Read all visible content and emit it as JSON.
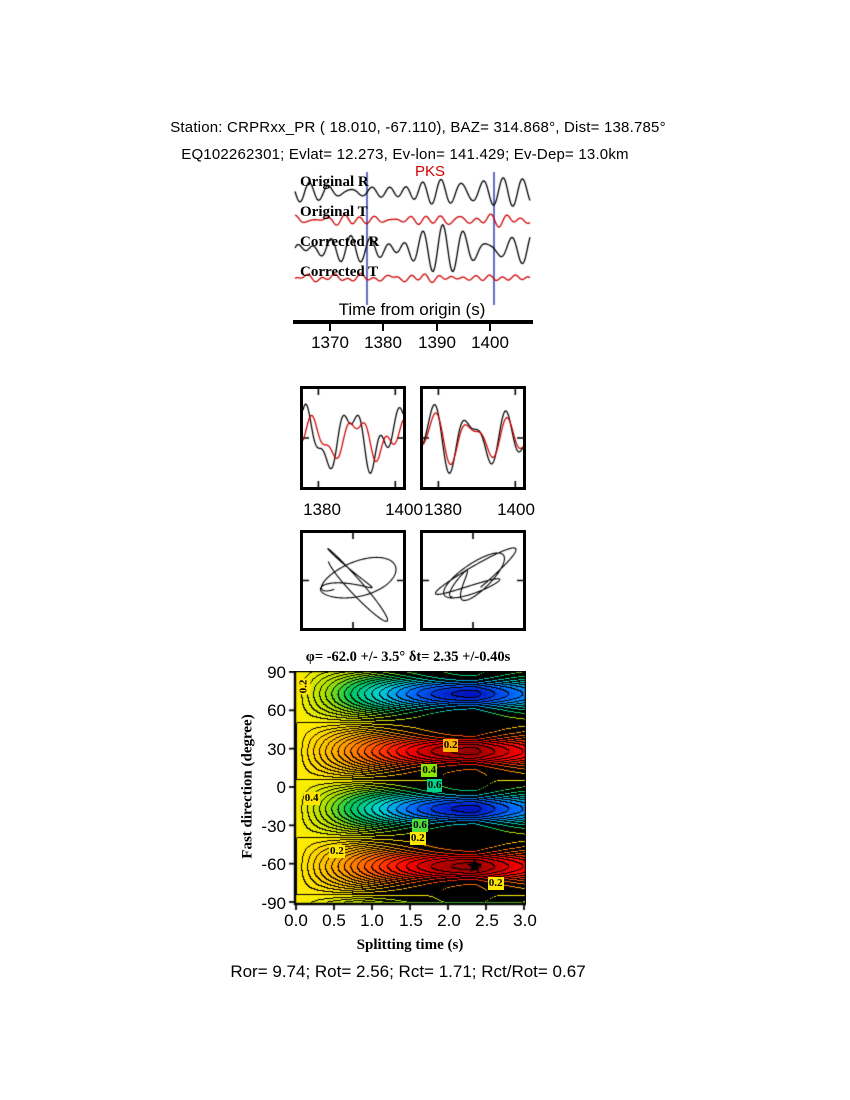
{
  "header": {
    "line1": "Station: CRPRxx_PR (  18.010,  -67.110), BAZ=  314.868°, Dist=  138.785°",
    "line2": "EQ102262301; Evlat=  12.273, Ev-lon= 141.429; Ev-Dep= 13.0km"
  },
  "station": {
    "name": "CRPRxx_PR",
    "lat": 18.01,
    "lon": -67.11,
    "baz_deg": 314.868,
    "dist_deg": 138.785,
    "event_id": "EQ102262301",
    "ev_lat": 12.273,
    "ev_lon": 141.429,
    "ev_dep_km": 13.0
  },
  "waveforms": {
    "phase_label": "PKS",
    "phase_color": "#d40000",
    "xlabel": "Time from origin (s)",
    "xticks": [
      "1370",
      "1380",
      "1390",
      "1400"
    ],
    "window_color": "#3b49b8",
    "traces": [
      {
        "label": "Original R",
        "color": "#000000"
      },
      {
        "label": "Original T",
        "color": "#cc0000"
      },
      {
        "label": "Corrected R",
        "color": "#000000"
      },
      {
        "label": "Corrected T",
        "color": "#cc0000"
      }
    ]
  },
  "compare": {
    "xticks": [
      "1380",
      "1400",
      "1380",
      "1400"
    ]
  },
  "contour": {
    "title": "φ= -62.0 +/- 3.5°  δt= 2.35 +/-0.40s",
    "ylabel": "Fast direction (degree)",
    "xlabel": "Splitting time (s)",
    "yticks": [
      "90",
      "60",
      "30",
      "0",
      "-30",
      "-60",
      "-90"
    ],
    "xticks": [
      "0.0",
      "0.5",
      "1.0",
      "1.5",
      "2.0",
      "2.5",
      "3.0"
    ]
  },
  "footer": {
    "text": "Ror= 9.74; Rot= 2.56; Rct= 1.71; Rct/Rot= 0.67"
  },
  "chart_data": [
    {
      "type": "line",
      "name": "waveform-traces",
      "phase": "PKS",
      "xlabel": "Time from origin (s)",
      "x_range": [
        1363,
        1408
      ],
      "xticks": [
        1370,
        1380,
        1390,
        1400
      ],
      "window_s": [
        1377,
        1400.5
      ],
      "series": [
        {
          "name": "Original R",
          "color": "#000000"
        },
        {
          "name": "Original T",
          "color": "#cc0000"
        },
        {
          "name": "Corrected R",
          "color": "#000000"
        },
        {
          "name": "Corrected T",
          "color": "#cc0000"
        }
      ]
    },
    {
      "type": "line",
      "name": "window-comparison",
      "panels": [
        {
          "name": "original R vs T",
          "xticks": [
            1380,
            1400
          ]
        },
        {
          "name": "corrected R vs T",
          "xticks": [
            1380,
            1400
          ]
        }
      ]
    },
    {
      "type": "scatter",
      "name": "particle-motion",
      "panels": [
        {
          "name": "original"
        },
        {
          "name": "corrected"
        }
      ]
    },
    {
      "type": "heatmap",
      "name": "splitting-error-surface",
      "title": "φ= -62.0 +/- 3.5°  δt= 2.35 +/-0.40s",
      "xlabel": "Splitting time (s)",
      "ylabel": "Fast direction (degree)",
      "x_range": [
        0,
        3
      ],
      "y_range": [
        -90,
        90
      ],
      "xticks": [
        0,
        0.5,
        1,
        1.5,
        2,
        2.5,
        3
      ],
      "yticks": [
        90,
        60,
        30,
        0,
        -30,
        -60,
        -90
      ],
      "best_fit": {
        "phi": -62.0,
        "phi_err": 3.5,
        "dt": 2.35,
        "dt_err": 0.4
      },
      "stats": {
        "Ror": 9.74,
        "Rot": 2.56,
        "Rct": 1.71,
        "Rct_over_Rot": 0.67
      },
      "contour_labels": [
        {
          "text": "0.2",
          "x": 2.04,
          "y": 32,
          "bg": "#ffb400",
          "rot": 0
        },
        {
          "text": "0.4",
          "x": 1.76,
          "y": 13,
          "bg": "#8ce600",
          "rot": 0
        },
        {
          "text": "0.6",
          "x": 1.83,
          "y": 1,
          "bg": "#00d28c",
          "rot": 0
        },
        {
          "text": "0.4",
          "x": 0.22,
          "y": -9,
          "bg": "#ffe600",
          "rot": 0
        },
        {
          "text": "0.6",
          "x": 1.64,
          "y": -30,
          "bg": "#50dc3c",
          "rot": 0
        },
        {
          "text": "0.2",
          "x": 1.61,
          "y": -40,
          "bg": "#ffe600",
          "rot": 0
        },
        {
          "text": "0.2",
          "x": 0.55,
          "y": -50,
          "bg": "#ffe600",
          "rot": 0
        },
        {
          "text": "0.2",
          "x": 2.63,
          "y": -75,
          "bg": "#ffe600",
          "rot": 0
        },
        {
          "text": "0.2",
          "x": 0.12,
          "y": 78,
          "bg": "#ffe600",
          "rot": -90
        }
      ]
    }
  ]
}
